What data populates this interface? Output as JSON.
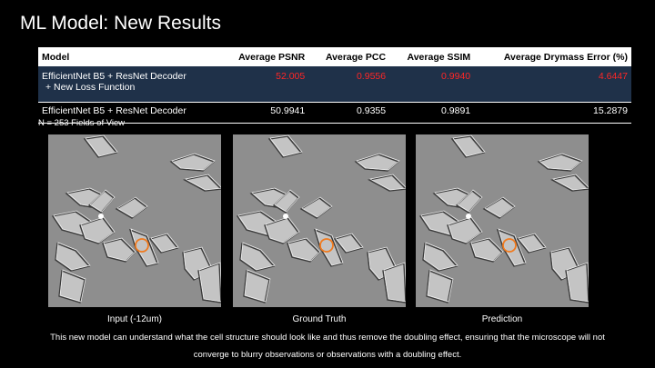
{
  "slide": {
    "title": "ML Model: New Results",
    "table": {
      "headers": [
        "Model",
        "Average PSNR",
        "Average PCC",
        "Average SSIM",
        "Average Drymass Error (%)"
      ],
      "rows": [
        {
          "model_line1": "EfficientNet B5 + ResNet Decoder",
          "model_line2": "+ New Loss Function",
          "psnr": "52.005",
          "pcc": "0.9556",
          "ssim": "0.9940",
          "drymass": "4.6447"
        },
        {
          "model_line1": "EfficientNet B5 + ResNet Decoder",
          "psnr": "50.9941",
          "pcc": "0.9355",
          "ssim": "0.9891",
          "drymass": "15.2879"
        }
      ]
    },
    "note": "N = 253 Fields of View",
    "images": [
      {
        "caption": "Input (-12um)"
      },
      {
        "caption": "Ground Truth"
      },
      {
        "caption": "Prediction"
      }
    ],
    "description_line1": "This new model can understand what the cell structure should look like and thus remove the doubling effect, ensuring that the microscope will not",
    "description_line2": "converge to blurry observations or observations with a doubling effect.",
    "colors": {
      "highlight_text": "#ff2626",
      "highlight_row": "#1f3149",
      "marker_circle": "#f07a1e"
    }
  }
}
